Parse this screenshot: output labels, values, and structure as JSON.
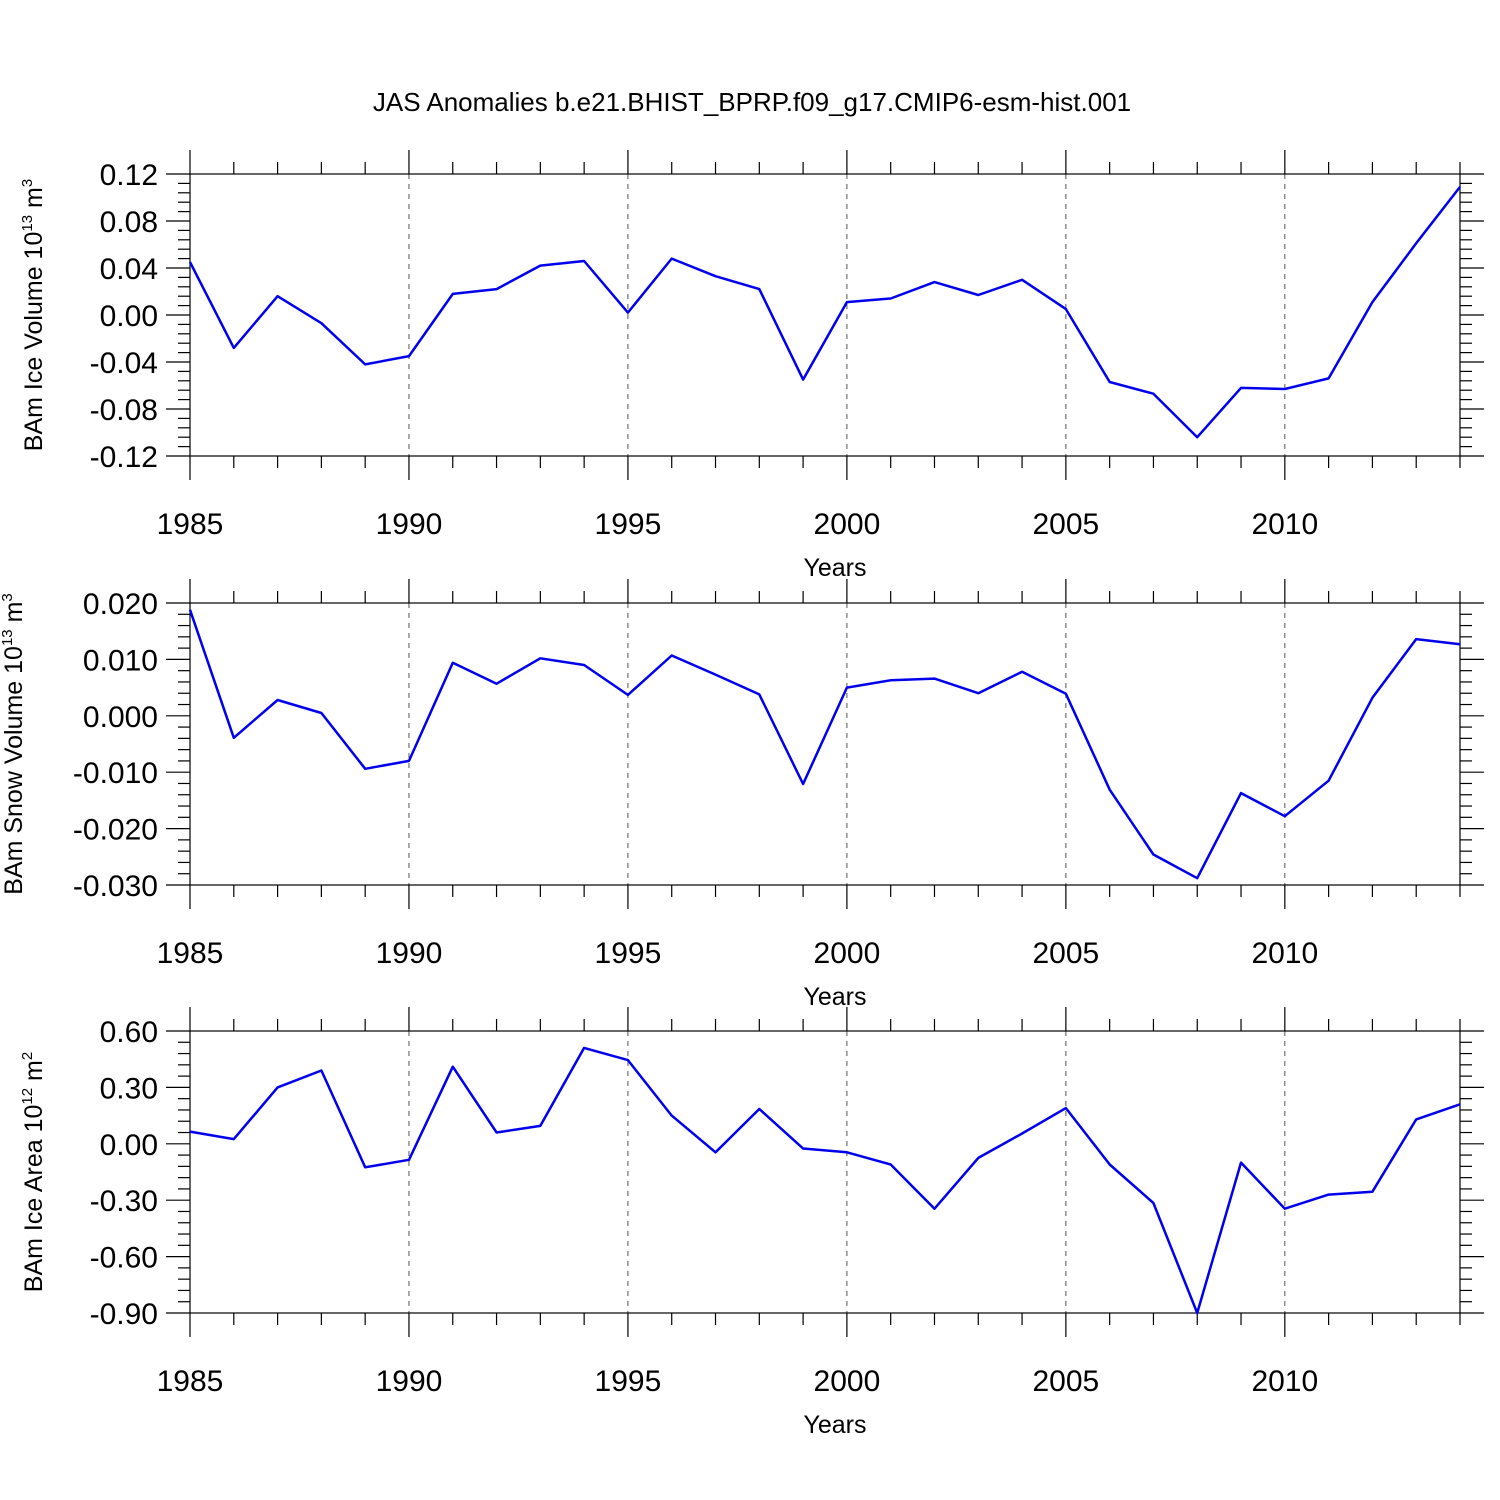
{
  "title": "JAS Anomalies b.e21.BHIST_BPRP.f09_g17.CMIP6-esm-hist.001",
  "colors": {
    "line": "#0000ee",
    "axis": "#000000",
    "grid": "#555555"
  },
  "chart_data": [
    {
      "type": "line",
      "ylabel_main": "BAm Ice Volume 10",
      "ylabel_exp": "13",
      "ylabel_unit": " m",
      "ylabel_unit_exp": "3",
      "xlabel": "Years",
      "xlim": [
        1985,
        2014
      ],
      "ylim": [
        -0.12,
        0.12
      ],
      "x_ticks": [
        1985,
        1990,
        1995,
        2000,
        2005,
        2010
      ],
      "x_tick_labels": [
        "1985",
        "1990",
        "1995",
        "2000",
        "2005",
        "2010"
      ],
      "y_ticks": [
        0.12,
        0.08,
        0.04,
        0.0,
        -0.04,
        -0.08,
        -0.12
      ],
      "y_tick_labels": [
        "0.12",
        "0.08",
        "0.04",
        "0.00",
        "-0.04",
        "-0.08",
        "-0.12"
      ],
      "grid": "vertical dashed at major x ticks",
      "x": [
        1985,
        1986,
        1987,
        1988,
        1989,
        1990,
        1991,
        1992,
        1993,
        1994,
        1995,
        1996,
        1997,
        1998,
        1999,
        2000,
        2001,
        2002,
        2003,
        2004,
        2005,
        2006,
        2007,
        2008,
        2009,
        2010,
        2011,
        2012,
        2013,
        2014
      ],
      "values": [
        0.045,
        -0.028,
        0.016,
        -0.007,
        -0.042,
        -0.035,
        0.018,
        0.022,
        0.042,
        0.046,
        0.002,
        0.048,
        0.033,
        0.022,
        -0.055,
        0.011,
        0.014,
        0.028,
        0.017,
        0.03,
        0.005,
        -0.057,
        -0.067,
        -0.104,
        -0.062,
        -0.063,
        -0.054,
        0.011,
        0.061,
        0.109
      ]
    },
    {
      "type": "line",
      "ylabel_main": "BAm Snow Volume 10",
      "ylabel_exp": "13",
      "ylabel_unit": " m",
      "ylabel_unit_exp": "3",
      "xlabel": "Years",
      "xlim": [
        1985,
        2014
      ],
      "ylim": [
        -0.03,
        0.02
      ],
      "x_ticks": [
        1985,
        1990,
        1995,
        2000,
        2005,
        2010
      ],
      "x_tick_labels": [
        "1985",
        "1990",
        "1995",
        "2000",
        "2005",
        "2010"
      ],
      "y_ticks": [
        0.02,
        0.01,
        0.0,
        -0.01,
        -0.02,
        -0.03
      ],
      "y_tick_labels": [
        "0.020",
        "0.010",
        "0.000",
        "-0.010",
        "-0.020",
        "-0.030"
      ],
      "grid": "vertical dashed at major x ticks",
      "x": [
        1985,
        1986,
        1987,
        1988,
        1989,
        1990,
        1991,
        1992,
        1993,
        1994,
        1995,
        1996,
        1997,
        1998,
        1999,
        2000,
        2001,
        2002,
        2003,
        2004,
        2005,
        2006,
        2007,
        2008,
        2009,
        2010,
        2011,
        2012,
        2013,
        2014
      ],
      "values": [
        0.0188,
        -0.0039,
        0.0028,
        0.0005,
        -0.0094,
        -0.008,
        0.0094,
        0.0057,
        0.0102,
        0.009,
        0.0037,
        0.0107,
        0.0073,
        0.0038,
        -0.0121,
        0.005,
        0.0063,
        0.0066,
        0.004,
        0.0078,
        0.0039,
        -0.0131,
        -0.0246,
        -0.0288,
        -0.0137,
        -0.0178,
        -0.0115,
        0.0032,
        0.0136,
        0.0127
      ]
    },
    {
      "type": "line",
      "ylabel_main": "BAm Ice Area 10",
      "ylabel_exp": "12",
      "ylabel_unit": " m",
      "ylabel_unit_exp": "2",
      "xlabel": "Years",
      "xlim": [
        1985,
        2014
      ],
      "ylim": [
        -0.9,
        0.6
      ],
      "x_ticks": [
        1985,
        1990,
        1995,
        2000,
        2005,
        2010
      ],
      "x_tick_labels": [
        "1985",
        "1990",
        "1995",
        "2000",
        "2005",
        "2010"
      ],
      "y_ticks": [
        0.6,
        0.3,
        0.0,
        -0.3,
        -0.6,
        -0.9
      ],
      "y_tick_labels": [
        "0.60",
        "0.30",
        "0.00",
        "-0.30",
        "-0.60",
        "-0.90"
      ],
      "grid": "vertical dashed at major x ticks",
      "x": [
        1985,
        1986,
        1987,
        1988,
        1989,
        1990,
        1991,
        1992,
        1993,
        1994,
        1995,
        1996,
        1997,
        1998,
        1999,
        2000,
        2001,
        2002,
        2003,
        2004,
        2005,
        2006,
        2007,
        2008,
        2009,
        2010,
        2011,
        2012,
        2013,
        2014
      ],
      "values": [
        0.065,
        0.025,
        0.3,
        0.39,
        -0.125,
        -0.085,
        0.41,
        0.06,
        0.095,
        0.51,
        0.445,
        0.15,
        -0.045,
        0.185,
        -0.025,
        -0.045,
        -0.11,
        -0.345,
        -0.075,
        0.055,
        0.19,
        -0.11,
        -0.315,
        -0.9,
        -0.1,
        -0.345,
        -0.27,
        -0.255,
        0.13,
        0.21
      ]
    }
  ]
}
